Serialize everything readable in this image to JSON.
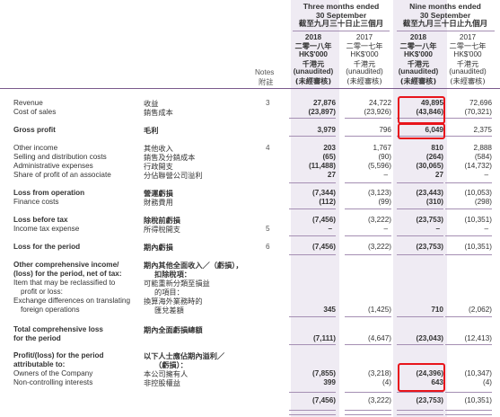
{
  "header": {
    "three_months_title_lines": [
      "Three months ended",
      "30 September",
      "截至九月三十日止三個月"
    ],
    "nine_months_title_lines": [
      "Nine months ended",
      "30 September",
      "截至九月三十日止九個月"
    ],
    "notes_label": [
      "Notes",
      "附註"
    ],
    "columns": [
      {
        "year": "2018",
        "year_cn": "二零一八年",
        "currency": "HK$'000",
        "currency_cn": "千港元",
        "status": "(unaudited)",
        "status_cn": "(未經審核)",
        "bold": true
      },
      {
        "year": "2017",
        "year_cn": "二零一七年",
        "currency": "HK$'000",
        "currency_cn": "千港元",
        "status": "(unaudited)",
        "status_cn": "(未經審核)",
        "bold": false
      },
      {
        "year": "2018",
        "year_cn": "二零一八年",
        "currency": "HK$'000",
        "currency_cn": "千港元",
        "status": "(unaudited)",
        "status_cn": "(未經審核)",
        "bold": true
      },
      {
        "year": "2017",
        "year_cn": "二零一七年",
        "currency": "HK$'000",
        "currency_cn": "千港元",
        "status": "(unaudited)",
        "status_cn": "(未經審核)",
        "bold": false
      }
    ]
  },
  "rows": [
    {
      "en": [
        "Revenue"
      ],
      "cn": [
        "收益"
      ],
      "note": "3",
      "vals": [
        "27,876",
        "24,722",
        "49,895",
        "72,696"
      ],
      "bold": false
    },
    {
      "en": [
        "Cost of sales"
      ],
      "cn": [
        "銷售成本"
      ],
      "note": "",
      "vals": [
        "(23,897)",
        "(23,926)",
        "(43,846)",
        "(70,321)"
      ],
      "bold": false
    },
    {
      "en": [
        "Gross profit"
      ],
      "cn": [
        "毛利"
      ],
      "note": "",
      "vals": [
        "3,979",
        "796",
        "6,049",
        "2,375"
      ],
      "bold": true
    },
    {
      "en": [
        "Other income"
      ],
      "cn": [
        "其他收入"
      ],
      "note": "4",
      "vals": [
        "203",
        "1,767",
        "810",
        "2,888"
      ],
      "bold": false
    },
    {
      "en": [
        "Selling and distribution costs"
      ],
      "cn": [
        "銷售及分銷成本"
      ],
      "note": "",
      "vals": [
        "(65)",
        "(90)",
        "(264)",
        "(584)"
      ],
      "bold": false
    },
    {
      "en": [
        "Administrative expenses"
      ],
      "cn": [
        "行政開支"
      ],
      "note": "",
      "vals": [
        "(11,488)",
        "(5,596)",
        "(30,065)",
        "(14,732)"
      ],
      "bold": false
    },
    {
      "en": [
        "Share of profit of an associate"
      ],
      "cn": [
        "分佔聯營公司溢利"
      ],
      "note": "",
      "vals": [
        "27",
        "",
        "27",
        ""
      ],
      "bold": false
    },
    {
      "en": [
        "Loss from operation"
      ],
      "cn": [
        "營運虧損"
      ],
      "note": "",
      "vals": [
        "(7,344)",
        "(3,123)",
        "(23,443)",
        "(10,053)"
      ],
      "bold": true
    },
    {
      "en": [
        "Finance costs"
      ],
      "cn": [
        "財務費用"
      ],
      "note": "",
      "vals": [
        "(112)",
        "(99)",
        "(310)",
        "(298)"
      ],
      "bold": false
    },
    {
      "en": [
        "Loss before tax"
      ],
      "cn": [
        "除稅前虧損"
      ],
      "note": "",
      "vals": [
        "(7,456)",
        "(3,222)",
        "(23,753)",
        "(10,351)"
      ],
      "bold": true
    },
    {
      "en": [
        "Income tax expense"
      ],
      "cn": [
        "所得稅開支"
      ],
      "note": "5",
      "vals": [
        "",
        "",
        "",
        ""
      ],
      "bold": false
    },
    {
      "en": [
        "Loss for the period"
      ],
      "cn": [
        "期內虧損"
      ],
      "note": "6",
      "vals": [
        "(7,456)",
        "(3,222)",
        "(23,753)",
        "(10,351)"
      ],
      "bold": true
    },
    {
      "en": [
        "Other comprehensive income/",
        "(loss) for the period, net of tax:"
      ],
      "cn": [
        "期內其他全面收入／（虧損），",
        "扣除稅項："
      ],
      "note": "",
      "vals": [
        "",
        "",
        "",
        ""
      ],
      "bold": true
    },
    {
      "en": [
        "Item that may be reclassified to",
        "profit or loss:"
      ],
      "cn": [
        "可能重新分類至損益",
        "的項目："
      ],
      "note": "",
      "vals": [
        "",
        "",
        "",
        ""
      ],
      "bold": false
    },
    {
      "en": [
        "Exchange differences on translating",
        "foreign operations"
      ],
      "cn": [
        "換算海外業務時的",
        "匯兌差額"
      ],
      "note": "",
      "vals": [
        "345",
        "(1,425)",
        "710",
        "(2,062)"
      ],
      "bold": false
    },
    {
      "en": [
        "Total comprehensive loss",
        "for the period"
      ],
      "cn": [
        "期內全面虧損總額"
      ],
      "note": "",
      "vals": [
        "(7,111)",
        "(4,647)",
        "(23,043)",
        "(12,413)"
      ],
      "bold": true
    },
    {
      "en": [
        "Profit/(loss) for the period",
        "attributable to:"
      ],
      "cn": [
        "以下人士應佔期內溢利／",
        "（虧損）："
      ],
      "note": "",
      "vals": [
        "",
        "",
        "",
        ""
      ],
      "bold": true
    },
    {
      "en": [
        "Owners of the Company"
      ],
      "cn": [
        "本公司擁有人"
      ],
      "note": "",
      "vals": [
        "(7,855)",
        "(3,218)",
        "(24,396)",
        "(10,347)"
      ],
      "bold": false
    },
    {
      "en": [
        "Non-controlling interests"
      ],
      "cn": [
        "非控股權益"
      ],
      "note": "",
      "vals": [
        "399",
        "(4)",
        "643",
        "(4)"
      ],
      "bold": false
    },
    {
      "en": [],
      "cn": [],
      "note": "",
      "vals": [
        "(7,456)",
        "(3,222)",
        "(23,753)",
        "(10,351)"
      ],
      "bold": false
    }
  ],
  "highlight_color": "#e8141b",
  "accent_color": "#7a5a8c",
  "shade_color": "#efebf3"
}
